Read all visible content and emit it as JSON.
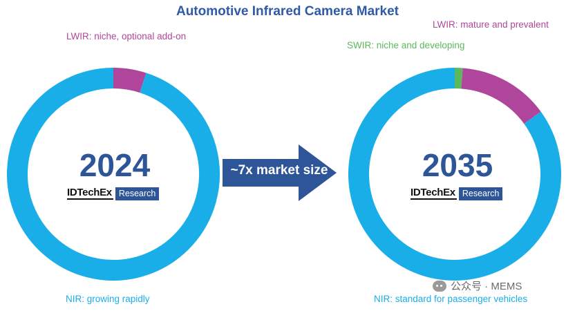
{
  "colors": {
    "title": "#2f5aa8",
    "nir": "#1aaee8",
    "lwir": "#b0469b",
    "swir": "#5cb85c",
    "year": "#2e5597",
    "arrow": "#2e5597",
    "research_bg": "#2e5597"
  },
  "chart_data": {
    "type": "pie",
    "title": "Automotive Infrared Camera Market",
    "annotation": "~7x market size",
    "charts": [
      {
        "year": "2024",
        "slices": [
          {
            "key": "lwir",
            "label": "LWIR: niche, optional add-on",
            "value": 0.05
          },
          {
            "key": "nir",
            "label": "NIR: growing rapidly",
            "value": 0.95
          }
        ]
      },
      {
        "year": "2035",
        "slices": [
          {
            "key": "swir",
            "label": "SWIR: niche and developing",
            "value": 0.012
          },
          {
            "key": "lwir",
            "label": "LWIR: mature and prevalent",
            "value": 0.138
          },
          {
            "key": "nir",
            "label": "NIR: standard for passenger vehicles",
            "value": 0.85
          }
        ]
      }
    ]
  },
  "branding": {
    "brand": "IDTechEx",
    "research": "Research"
  },
  "watermark": {
    "text": "公众号 · MEMS"
  }
}
